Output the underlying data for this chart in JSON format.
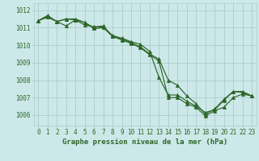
{
  "title": "Graphe pression niveau de la mer (hPa)",
  "background_color": "#cde8e8",
  "grid_color": "#aacccc",
  "line_color": "#2d6629",
  "xlim": [
    -0.5,
    23.5
  ],
  "ylim": [
    1005.4,
    1012.4
  ],
  "yticks": [
    1006,
    1007,
    1008,
    1009,
    1010,
    1011,
    1012
  ],
  "xticks": [
    0,
    1,
    2,
    3,
    4,
    5,
    6,
    7,
    8,
    9,
    10,
    11,
    12,
    13,
    14,
    15,
    16,
    17,
    18,
    19,
    20,
    21,
    22,
    23
  ],
  "series": [
    [
      1011.4,
      1011.65,
      1011.35,
      1011.1,
      1011.45,
      1011.15,
      1011.05,
      1011.1,
      1010.5,
      1010.35,
      1010.15,
      1009.9,
      1009.5,
      1009.2,
      1008.0,
      1007.7,
      1007.1,
      1006.65,
      1006.05,
      1006.35,
      1006.9,
      1007.35,
      1007.3,
      1007.1
    ],
    [
      1011.4,
      1011.7,
      1011.35,
      1011.5,
      1011.5,
      1011.3,
      1011.0,
      1011.05,
      1010.55,
      1010.4,
      1010.2,
      1010.05,
      1009.65,
      1008.15,
      1007.15,
      1007.15,
      1006.8,
      1006.5,
      1006.15,
      1006.3,
      1006.85,
      1007.35,
      1007.35,
      1007.1
    ],
    [
      1011.4,
      1011.6,
      1011.35,
      1011.5,
      1011.45,
      1011.3,
      1010.95,
      1011.0,
      1010.5,
      1010.3,
      1010.1,
      1009.85,
      1009.45,
      1009.1,
      1007.0,
      1007.0,
      1006.65,
      1006.45,
      1005.95,
      1006.25,
      1006.45,
      1007.0,
      1007.2,
      1007.1
    ]
  ]
}
